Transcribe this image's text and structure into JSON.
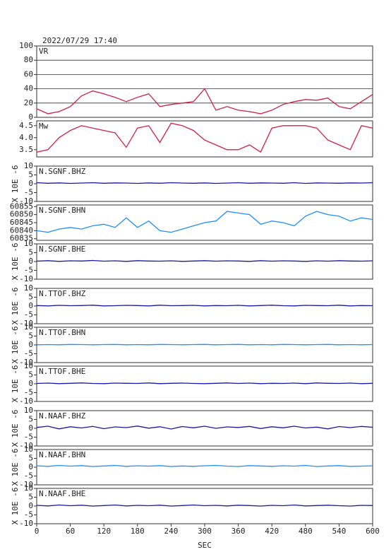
{
  "chart_data": [
    {
      "type": "line",
      "title": "2022/07/29 17:40",
      "label": "VR",
      "color": "#d0204a",
      "grid": true,
      "xlim": [
        0,
        600
      ],
      "ylim": [
        0,
        100
      ],
      "yticks": [
        0,
        20,
        40,
        60,
        80,
        100
      ],
      "x": [
        0,
        20,
        40,
        60,
        80,
        100,
        120,
        140,
        160,
        180,
        200,
        220,
        240,
        260,
        280,
        300,
        320,
        340,
        360,
        380,
        400,
        420,
        440,
        460,
        480,
        500,
        520,
        540,
        560,
        580,
        600
      ],
      "values": [
        12,
        5,
        8,
        15,
        30,
        37,
        33,
        28,
        22,
        28,
        33,
        15,
        18,
        20,
        22,
        40,
        10,
        15,
        10,
        8,
        5,
        10,
        18,
        22,
        25,
        24,
        27,
        15,
        12,
        22,
        32
      ]
    },
    {
      "type": "line",
      "label": "Mw",
      "color": "#d0204a",
      "xlim": [
        0,
        600
      ],
      "ylim": [
        3.2,
        4.7
      ],
      "yticks": [
        3.5,
        {
          "value": 4,
          "label": "4.0"
        },
        4.5
      ],
      "x": [
        0,
        20,
        40,
        60,
        80,
        100,
        120,
        140,
        160,
        180,
        200,
        220,
        240,
        260,
        280,
        300,
        320,
        340,
        360,
        380,
        400,
        420,
        440,
        460,
        480,
        500,
        520,
        540,
        560,
        580,
        600
      ],
      "values": [
        3.4,
        3.5,
        4.0,
        4.3,
        4.5,
        4.4,
        4.3,
        4.2,
        3.6,
        4.4,
        4.5,
        3.8,
        4.6,
        4.5,
        4.3,
        3.9,
        3.7,
        3.5,
        3.5,
        3.7,
        3.4,
        4.4,
        4.5,
        4.5,
        4.5,
        4.4,
        3.9,
        3.7,
        3.5,
        4.5,
        4.4
      ]
    },
    {
      "type": "line",
      "label": "N.SGNF.BHZ",
      "ylabel": "X 10E -6",
      "color": "#1a1aa0",
      "xlim": [
        0,
        600
      ],
      "ylim": [
        -10,
        10
      ],
      "yticks": [
        -10,
        -5,
        0,
        5,
        10
      ],
      "x": [
        0,
        20,
        40,
        60,
        80,
        100,
        120,
        140,
        160,
        180,
        200,
        220,
        240,
        260,
        280,
        300,
        320,
        340,
        360,
        380,
        400,
        420,
        440,
        460,
        480,
        500,
        520,
        540,
        560,
        580,
        600
      ],
      "values": [
        0.6,
        0.3,
        0.5,
        0.2,
        0.4,
        0.6,
        0.3,
        0.5,
        0.4,
        0.2,
        0.5,
        0.3,
        0.6,
        0.4,
        0.3,
        0.5,
        0.2,
        0.4,
        0.6,
        0.3,
        0.5,
        0.4,
        0.3,
        0.6,
        0.2,
        0.5,
        0.4,
        0.3,
        0.5,
        0.4,
        0.6
      ]
    },
    {
      "type": "line",
      "label": "N.SGNF.BHN",
      "color": "#1e90ff",
      "xlim": [
        0,
        600
      ],
      "ylim": [
        60834,
        60856
      ],
      "yticks": [
        60835,
        60840,
        60845,
        60850,
        60855
      ],
      "x": [
        0,
        20,
        40,
        60,
        80,
        100,
        120,
        140,
        160,
        180,
        200,
        220,
        240,
        260,
        280,
        300,
        320,
        340,
        360,
        380,
        400,
        420,
        440,
        460,
        480,
        500,
        520,
        540,
        560,
        580,
        600
      ],
      "values": [
        60840,
        60839,
        60841,
        60842,
        60841,
        60843,
        60844,
        60842,
        60848,
        60842,
        60846,
        60840,
        60839,
        60841,
        60843,
        60845,
        60846,
        60852,
        60851,
        60850,
        60844,
        60846,
        60845,
        60843,
        60849,
        60852,
        60850,
        60849,
        60846,
        60848,
        60847
      ]
    },
    {
      "type": "line",
      "label": "N.SGNF.BHE",
      "ylabel": "X 10E -6",
      "color": "#1a1aa0",
      "xlim": [
        0,
        600
      ],
      "ylim": [
        -10,
        10
      ],
      "yticks": [
        -10,
        -5,
        0,
        5,
        10
      ],
      "x": [
        0,
        20,
        40,
        60,
        80,
        100,
        120,
        140,
        160,
        180,
        200,
        220,
        240,
        260,
        280,
        300,
        320,
        340,
        360,
        380,
        400,
        420,
        440,
        460,
        480,
        500,
        520,
        540,
        560,
        580,
        600
      ],
      "values": [
        0.2,
        0.5,
        0.1,
        0.4,
        0.3,
        0.6,
        0.2,
        0.4,
        0.1,
        0.5,
        0.3,
        0.2,
        0.4,
        0.1,
        0.3,
        0.5,
        0.2,
        0.4,
        0.3,
        0.1,
        0.5,
        0.2,
        0.4,
        0.3,
        0.1,
        0.4,
        0.2,
        0.5,
        0.3,
        0.2,
        0.4
      ]
    },
    {
      "type": "line",
      "label": "N.TTOF.BHZ",
      "ylabel": "X 10E -6",
      "color": "#1a1aa0",
      "xlim": [
        0,
        600
      ],
      "ylim": [
        -10,
        10
      ],
      "yticks": [
        -10,
        -5,
        0,
        5,
        10
      ],
      "x": [
        0,
        20,
        40,
        60,
        80,
        100,
        120,
        140,
        160,
        180,
        200,
        220,
        240,
        260,
        280,
        300,
        320,
        340,
        360,
        380,
        400,
        420,
        440,
        460,
        480,
        500,
        520,
        540,
        560,
        580,
        600
      ],
      "values": [
        0.3,
        0.1,
        0.4,
        0.2,
        0.3,
        0.5,
        0.1,
        0.2,
        0.4,
        0.3,
        0.1,
        0.5,
        0.2,
        0.3,
        0.4,
        0.1,
        0.3,
        0.2,
        0.4,
        0.1,
        0.3,
        0.5,
        0.2,
        0.1,
        0.4,
        0.3,
        0.2,
        0.5,
        0.1,
        0.3,
        0.2
      ]
    },
    {
      "type": "line",
      "label": "N.TTOF.BHN",
      "ylabel": "X 10E -6",
      "color": "#1e90ff",
      "xlim": [
        0,
        600
      ],
      "ylim": [
        -10,
        10
      ],
      "yticks": [
        -10,
        -5,
        0,
        5,
        10
      ],
      "x": [
        0,
        20,
        40,
        60,
        80,
        100,
        120,
        140,
        160,
        180,
        200,
        220,
        240,
        260,
        280,
        300,
        320,
        340,
        360,
        380,
        400,
        420,
        440,
        460,
        480,
        500,
        520,
        540,
        560,
        580,
        600
      ],
      "values": [
        0.1,
        0.2,
        0.1,
        0.3,
        0.2,
        0.1,
        0.2,
        0.3,
        0.1,
        0.2,
        0.1,
        0.3,
        0.2,
        0.1,
        0.2,
        0.3,
        0.1,
        0.2,
        0.3,
        0.1,
        0.2,
        0.1,
        0.3,
        0.2,
        0.1,
        0.2,
        0.3,
        0.1,
        0.2,
        0.1,
        0.2
      ]
    },
    {
      "type": "line",
      "label": "N.TTOF.BHE",
      "ylabel": "X 10E -6",
      "color": "#1a1aa0",
      "xlim": [
        0,
        600
      ],
      "ylim": [
        -10,
        10
      ],
      "yticks": [
        -10,
        -5,
        0,
        5,
        10
      ],
      "x": [
        0,
        20,
        40,
        60,
        80,
        100,
        120,
        140,
        160,
        180,
        200,
        220,
        240,
        260,
        280,
        300,
        320,
        340,
        360,
        380,
        400,
        420,
        440,
        460,
        480,
        500,
        520,
        540,
        560,
        580,
        600
      ],
      "values": [
        0.2,
        0.4,
        0.1,
        0.3,
        0.5,
        0.2,
        0.1,
        0.4,
        0.3,
        0.2,
        0.5,
        0.1,
        0.3,
        0.4,
        0.2,
        0.1,
        0.3,
        0.5,
        0.2,
        0.4,
        0.1,
        0.3,
        0.2,
        0.4,
        0.1,
        0.5,
        0.3,
        0.2,
        0.4,
        0.1,
        0.3
      ]
    },
    {
      "type": "line",
      "label": "N.NAAF.BHZ",
      "ylabel": "X 10E -6",
      "color": "#1a1aa0",
      "xlim": [
        0,
        600
      ],
      "ylim": [
        -10,
        10
      ],
      "yticks": [
        -10,
        -5,
        0,
        5,
        10
      ],
      "x": [
        0,
        20,
        40,
        60,
        80,
        100,
        120,
        140,
        160,
        180,
        200,
        220,
        240,
        260,
        280,
        300,
        320,
        340,
        360,
        380,
        400,
        420,
        440,
        460,
        480,
        500,
        520,
        540,
        560,
        580,
        600
      ],
      "values": [
        0.5,
        1.2,
        -0.3,
        0.9,
        0.2,
        1.1,
        -0.2,
        0.8,
        0.4,
        1.3,
        0.1,
        0.9,
        -0.4,
        1.0,
        0.3,
        1.2,
        0.0,
        0.8,
        0.5,
        1.1,
        -0.1,
        0.9,
        0.3,
        1.2,
        0.2,
        0.7,
        -0.3,
        1.0,
        0.4,
        1.1,
        0.6
      ]
    },
    {
      "type": "line",
      "label": "N.NAAF.BHN",
      "ylabel": "X 10E -6",
      "color": "#1e90ff",
      "xlim": [
        0,
        600
      ],
      "ylim": [
        -10,
        10
      ],
      "yticks": [
        -10,
        -5,
        0,
        5,
        10
      ],
      "x": [
        0,
        20,
        40,
        60,
        80,
        100,
        120,
        140,
        160,
        180,
        200,
        220,
        240,
        260,
        280,
        300,
        320,
        340,
        360,
        380,
        400,
        420,
        440,
        460,
        480,
        500,
        520,
        540,
        560,
        580,
        600
      ],
      "values": [
        0.8,
        0.5,
        1.0,
        0.6,
        0.9,
        0.4,
        0.7,
        1.0,
        0.5,
        0.8,
        0.6,
        0.9,
        0.4,
        0.7,
        0.5,
        0.8,
        1.0,
        0.6,
        0.4,
        0.9,
        0.7,
        0.5,
        0.8,
        0.6,
        1.0,
        0.4,
        0.7,
        0.9,
        0.5,
        0.6,
        0.8
      ]
    },
    {
      "type": "line",
      "label": "N.NAAF.BHE",
      "ylabel": "X 10E -6",
      "xlabel": "SEC",
      "color": "#1a1aa0",
      "xlim": [
        0,
        600
      ],
      "ylim": [
        -10,
        10
      ],
      "yticks": [
        -10,
        -5,
        0,
        5,
        10
      ],
      "xticks": [
        0,
        60,
        120,
        180,
        240,
        300,
        360,
        420,
        480,
        540,
        600
      ],
      "x": [
        0,
        20,
        40,
        60,
        80,
        100,
        120,
        140,
        160,
        180,
        200,
        220,
        240,
        260,
        280,
        300,
        320,
        340,
        360,
        380,
        400,
        420,
        440,
        460,
        480,
        500,
        520,
        540,
        560,
        580,
        600
      ],
      "values": [
        0.4,
        0.1,
        0.6,
        0.2,
        0.5,
        0.0,
        0.3,
        0.6,
        0.1,
        0.4,
        0.2,
        0.5,
        0.0,
        0.3,
        0.6,
        0.2,
        0.4,
        0.1,
        0.5,
        0.3,
        0.0,
        0.4,
        0.2,
        0.6,
        0.1,
        0.3,
        0.5,
        0.2,
        0.0,
        0.4,
        0.3
      ]
    }
  ]
}
